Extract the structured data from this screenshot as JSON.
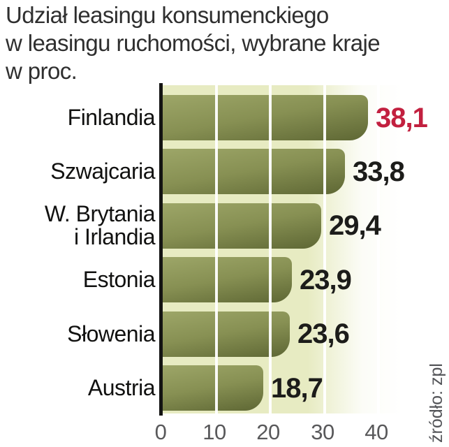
{
  "title": {
    "lines": [
      "Udział leasingu konsumenckiego",
      "w leasingu ruchomości, wybrane kraje",
      "w proc."
    ]
  },
  "source": "źródło: zpl",
  "chart_data": {
    "type": "bar",
    "orientation": "horizontal",
    "title": "Udział leasingu konsumenckiego w leasingu ruchomości, wybrane kraje w proc.",
    "categories": [
      "Finlandia",
      "Szwajcaria",
      "W. Brytania i Irlandia",
      "Estonia",
      "Słowenia",
      "Austria"
    ],
    "category_label_lines": [
      [
        "Finlandia"
      ],
      [
        "Szwajcaria"
      ],
      [
        "W. Brytania",
        "i Irlandia"
      ],
      [
        "Estonia"
      ],
      [
        "Słowenia"
      ],
      [
        "Austria"
      ]
    ],
    "values": [
      38.1,
      33.8,
      29.4,
      23.9,
      23.6,
      18.7
    ],
    "value_labels": [
      "38,1",
      "33,8",
      "29,4",
      "23,9",
      "23,6",
      "18,7"
    ],
    "highlight_index": 0,
    "x_ticks": [
      "0",
      "10",
      "20",
      "30",
      "40"
    ],
    "xlim": [
      0,
      40
    ],
    "grid": "vertical white gridlines over bars",
    "legend": "none",
    "colors": {
      "bar_top": "#9da668",
      "bar_bottom": "#5e6734",
      "plot_bg": "#e7ebc2",
      "axis": "#141413",
      "value": "#1c1c1a",
      "highlight_value": "#c2203f",
      "tick": "#59595b",
      "title": "#2f2f2f",
      "source": "#55565a"
    }
  }
}
